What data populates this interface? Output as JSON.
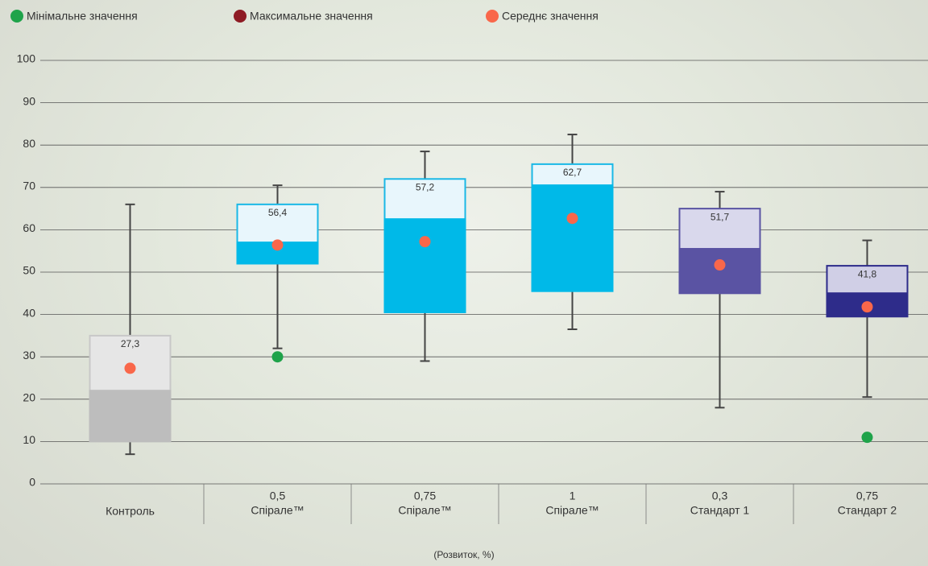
{
  "chart_data": {
    "type": "box",
    "xlabel": "(Розвиток, %)",
    "legend": [
      {
        "name": "Мінімальне значення",
        "color": "#1fa34a"
      },
      {
        "name": "Максимальне значення",
        "color": "#8e1b24"
      },
      {
        "name": "Середнє значення",
        "color": "#f9674a"
      }
    ],
    "categories": [
      [
        "Контроль"
      ],
      [
        "0,5",
        "Спірале™"
      ],
      [
        "0,75",
        "Спірале™"
      ],
      [
        "1",
        "Спірале™"
      ],
      [
        "0,3",
        "Стандарт 1"
      ],
      [
        "0,75",
        "Стандарт 2"
      ]
    ],
    "min": [
      7,
      32,
      29,
      36.5,
      18,
      20.5
    ],
    "q1": [
      10,
      52,
      40.5,
      45.5,
      45,
      39.5
    ],
    "median": [
      22,
      57,
      62.5,
      70.5,
      55.5,
      45
    ],
    "q3": [
      35,
      66,
      72,
      75.5,
      65,
      51.5
    ],
    "max": [
      66,
      70.5,
      78.5,
      82.5,
      69,
      57.5
    ],
    "means": [
      27.3,
      56.4,
      57.2,
      62.7,
      51.7,
      41.8
    ],
    "value_labels": [
      "27,3",
      "56,4",
      "57,2",
      "62,7",
      "51,7",
      "41,8"
    ],
    "outliers": [
      null,
      30,
      null,
      null,
      null,
      11
    ],
    "box_colors": [
      {
        "dark": "#bdbdbd",
        "light": "#e6e6e6",
        "stroke": "#c8c8c8"
      },
      {
        "dark": "#00b9e8",
        "light": "#e8f6fc",
        "stroke": "#1ab8e6"
      },
      {
        "dark": "#00b9e8",
        "light": "#e8f6fc",
        "stroke": "#1ab8e6"
      },
      {
        "dark": "#00b9e8",
        "light": "#e8f6fc",
        "stroke": "#1ab8e6"
      },
      {
        "dark": "#5a53a3",
        "light": "#d9d8ec",
        "stroke": "#5a55a3"
      },
      {
        "dark": "#2e2c8a",
        "light": "#d0cfe6",
        "stroke": "#2d2b8a"
      }
    ],
    "ylim": [
      0,
      100
    ],
    "yticks": [
      0,
      10,
      20,
      30,
      40,
      50,
      60,
      70,
      80,
      90,
      100
    ],
    "grid": true
  }
}
